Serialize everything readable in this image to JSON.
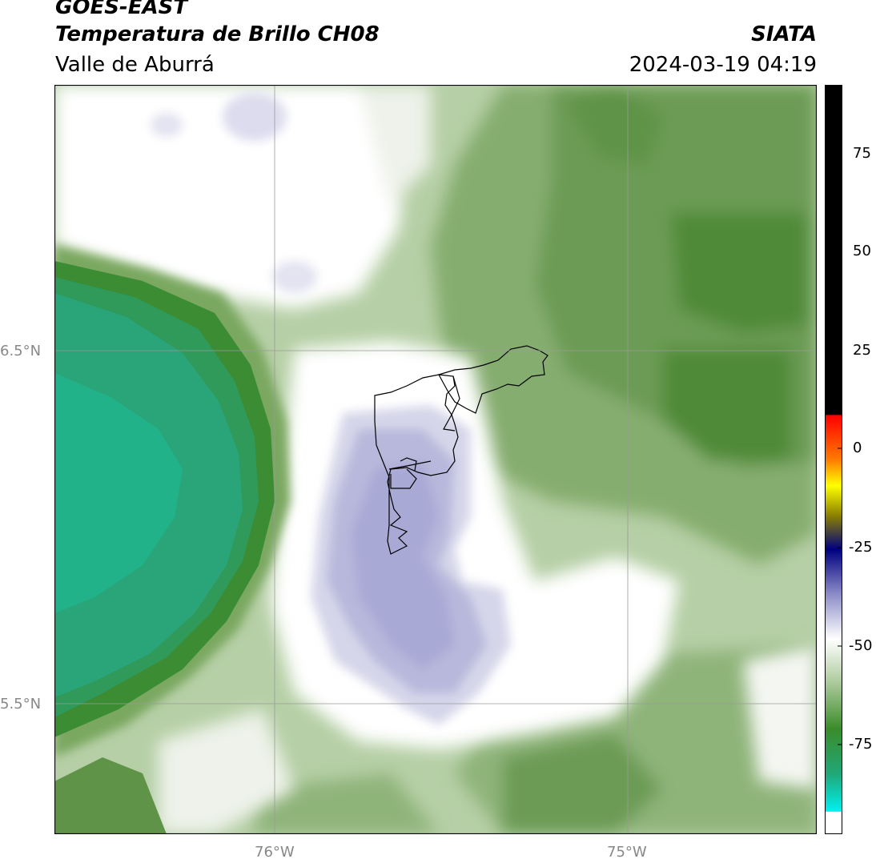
{
  "header": {
    "satellite": "GOES-EAST",
    "product": "Temperatura de Brillo CH08",
    "region": "Valle de Aburrá",
    "brand": "SIATA",
    "timestamp": "2024-03-19 04:19"
  },
  "map": {
    "lat_ticks": [
      "6.5°N",
      "5.5°N"
    ],
    "lon_ticks": [
      "76°W",
      "75°W"
    ]
  },
  "colorbar": {
    "tick_labels": [
      "75",
      "50",
      "25",
      "0",
      "-25",
      "-50",
      "-75"
    ],
    "units_range": [
      -95,
      92
    ],
    "colors": {
      "black": "#000000",
      "red": "#ff0000",
      "orange": "#ff8c00",
      "yellow": "#ffff00",
      "navy": "#000080",
      "lavender": "#a8a8d0",
      "white": "#ffffff",
      "green": "#3a8c2a",
      "teal": "#20b890",
      "cyan": "#00f0f0"
    }
  },
  "legend_colors": {
    "cold_purple": "#a9a9d6",
    "warm_green": "#4f8f3c",
    "sea_teal": "#2aa57a",
    "white_cloud": "#ffffff"
  }
}
